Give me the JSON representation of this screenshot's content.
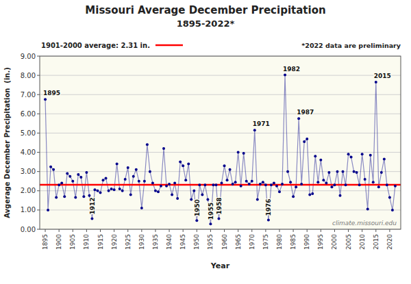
{
  "chart_data": {
    "type": "line",
    "title": "Missouri Average December Precipitation",
    "subtitle": "1895-2022*",
    "x_label": "Year",
    "y_label": "Avgerage December Precipitation  (in.)",
    "color": "#00008b",
    "marker": "circle",
    "grid": true,
    "xlim": [
      1893,
      2024
    ],
    "xticks": [
      1895,
      1900,
      1905,
      1910,
      1915,
      1920,
      1925,
      1930,
      1935,
      1940,
      1945,
      1950,
      1955,
      1960,
      1965,
      1970,
      1975,
      1980,
      1985,
      1990,
      1995,
      2000,
      2005,
      2010,
      2015,
      2020
    ],
    "ylim": [
      0.0,
      9.0
    ],
    "yticks": [
      {
        "value": 0.0,
        "label": "0.00"
      },
      {
        "value": 1.0,
        "label": "1.00"
      },
      {
        "value": 2.0,
        "label": "2.00"
      },
      {
        "value": 3.0,
        "label": "3.00"
      },
      {
        "value": 4.0,
        "label": "4.00"
      },
      {
        "value": 5.0,
        "label": "5.00"
      },
      {
        "value": 6.0,
        "label": "6.00"
      },
      {
        "value": 7.0,
        "label": "7.00"
      },
      {
        "value": 8.0,
        "label": "8.00"
      },
      {
        "value": 9.0,
        "label": "9.00"
      }
    ],
    "x": [
      1895,
      1896,
      1897,
      1898,
      1899,
      1900,
      1901,
      1902,
      1903,
      1904,
      1905,
      1906,
      1907,
      1908,
      1909,
      1910,
      1911,
      1912,
      1913,
      1914,
      1915,
      1916,
      1917,
      1918,
      1919,
      1920,
      1921,
      1922,
      1923,
      1924,
      1925,
      1926,
      1927,
      1928,
      1929,
      1930,
      1931,
      1932,
      1933,
      1934,
      1935,
      1936,
      1937,
      1938,
      1939,
      1940,
      1941,
      1942,
      1943,
      1944,
      1945,
      1946,
      1947,
      1948,
      1949,
      1950,
      1951,
      1952,
      1953,
      1954,
      1955,
      1956,
      1957,
      1958,
      1959,
      1960,
      1961,
      1962,
      1963,
      1964,
      1965,
      1966,
      1967,
      1968,
      1969,
      1970,
      1971,
      1972,
      1973,
      1974,
      1975,
      1976,
      1977,
      1978,
      1979,
      1980,
      1981,
      1982,
      1983,
      1984,
      1985,
      1986,
      1987,
      1988,
      1989,
      1990,
      1991,
      1992,
      1993,
      1994,
      1995,
      1996,
      1997,
      1998,
      1999,
      2000,
      2001,
      2002,
      2003,
      2004,
      2005,
      2006,
      2007,
      2008,
      2009,
      2010,
      2011,
      2012,
      2013,
      2014,
      2015,
      2016,
      2017,
      2018,
      2019,
      2020,
      2021,
      2022
    ],
    "values": [
      6.75,
      1.0,
      3.25,
      3.1,
      1.65,
      2.3,
      2.4,
      1.7,
      2.9,
      2.75,
      2.5,
      1.65,
      2.85,
      2.7,
      1.7,
      2.95,
      1.75,
      0.55,
      2.05,
      2.0,
      1.9,
      2.55,
      2.65,
      2.0,
      2.1,
      2.05,
      3.4,
      2.1,
      2.0,
      2.6,
      3.2,
      1.8,
      2.75,
      3.1,
      2.5,
      1.1,
      2.5,
      4.4,
      3.0,
      2.4,
      2.0,
      1.95,
      2.25,
      4.2,
      2.25,
      2.35,
      1.8,
      2.4,
      1.6,
      3.5,
      3.3,
      2.55,
      3.4,
      1.55,
      2.0,
      0.45,
      2.3,
      1.8,
      2.3,
      1.55,
      0.28,
      2.3,
      2.3,
      0.55,
      2.4,
      3.3,
      2.55,
      3.1,
      2.35,
      2.45,
      4.0,
      2.25,
      3.95,
      2.5,
      2.35,
      2.5,
      5.15,
      1.55,
      2.35,
      2.45,
      2.3,
      0.48,
      2.3,
      2.4,
      2.25,
      1.95,
      2.35,
      8.02,
      3.0,
      2.45,
      1.7,
      2.2,
      5.75,
      2.35,
      4.55,
      4.7,
      1.8,
      1.85,
      3.8,
      2.45,
      3.6,
      2.55,
      2.4,
      2.95,
      2.2,
      2.3,
      3.0,
      1.75,
      3.0,
      2.3,
      3.9,
      3.75,
      3.0,
      2.95,
      2.3,
      3.9,
      2.6,
      1.05,
      3.85,
      2.45,
      7.65,
      2.2,
      2.95,
      3.65,
      2.3,
      1.65,
      1.0,
      2.25
    ],
    "annotations": [
      {
        "text": "1901-2000 average: 2.31 in.",
        "y": 2.31,
        "color": "#ff0000"
      },
      {
        "text": "*2022 data are preliminary"
      },
      {
        "text": "climate.missouri.edu"
      },
      {
        "text": "1895",
        "x": 1895,
        "y": 6.75
      },
      {
        "text": "1912",
        "x": 1912,
        "y": 0.55
      },
      {
        "text": "1950",
        "x": 1950,
        "y": 0.45
      },
      {
        "text": "1955",
        "x": 1955,
        "y": 0.28
      },
      {
        "text": "1958",
        "x": 1958,
        "y": 0.55
      },
      {
        "text": "1971",
        "x": 1971,
        "y": 5.15
      },
      {
        "text": "1976",
        "x": 1976,
        "y": 0.48
      },
      {
        "text": "1982",
        "x": 1982,
        "y": 8.02
      },
      {
        "text": "1987",
        "x": 1987,
        "y": 5.75
      },
      {
        "text": "2015",
        "x": 2015,
        "y": 7.65
      }
    ]
  }
}
